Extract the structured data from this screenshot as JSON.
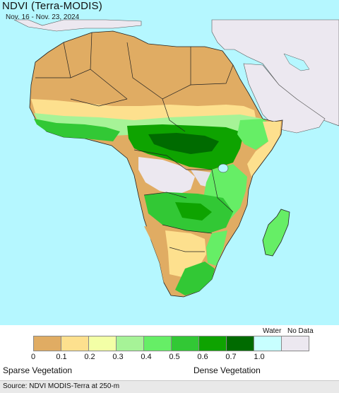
{
  "map": {
    "title": "NDVI (Terra-MODIS)",
    "date_range": "Nov. 16 - Nov. 23, 2024",
    "colors": {
      "ocean": "#b5f7ff",
      "no_data_land": "#ece8f0",
      "border": "#222222"
    }
  },
  "legend": {
    "bins": [
      {
        "color": "#e0ac63"
      },
      {
        "color": "#fde08e"
      },
      {
        "color": "#f3ffa6"
      },
      {
        "color": "#a6f397"
      },
      {
        "color": "#66ee66"
      },
      {
        "color": "#32c835"
      },
      {
        "color": "#0ea300"
      },
      {
        "color": "#006b00"
      },
      {
        "color": "#c8ffff"
      },
      {
        "color": "#ece8f0"
      }
    ],
    "ticks": [
      "0",
      "0.1",
      "0.2",
      "0.3",
      "0.4",
      "0.5",
      "0.6",
      "0.7",
      "1.0"
    ],
    "water_label": "Water",
    "nodata_label": "No Data",
    "sparse_label": "Sparse Vegetation",
    "dense_label": "Dense Vegetation"
  },
  "footer": {
    "source": "Source: NDVI MODIS-Terra at 250-m"
  }
}
